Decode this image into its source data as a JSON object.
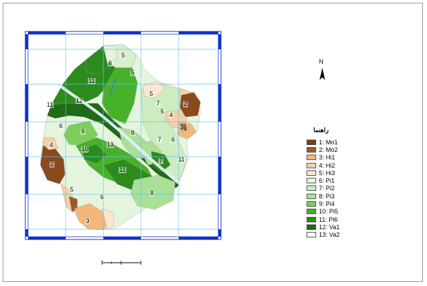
{
  "legend": {
    "title": "راهنما",
    "items": [
      {
        "label": "1: Mo1",
        "color": "#7a3d12"
      },
      {
        "label": "2: Mo2",
        "color": "#9c5a26"
      },
      {
        "label": "3: Hi1",
        "color": "#f2b77a"
      },
      {
        "label": "4: Hi2",
        "color": "#f6cfa6"
      },
      {
        "label": "5: Hi3",
        "color": "#fbe6d0"
      },
      {
        "label": "6: Pi1",
        "color": "#e5f5dd"
      },
      {
        "label": "7: Pi2",
        "color": "#cdedc1"
      },
      {
        "label": "8: Pi3",
        "color": "#a9df97"
      },
      {
        "label": "9: Pi4",
        "color": "#7ccf5c"
      },
      {
        "label": "10: Pi5",
        "color": "#48b12c"
      },
      {
        "label": "11: Pi6",
        "color": "#2b8c1c"
      },
      {
        "label": "12: Va1",
        "color": "#1f6b17"
      },
      {
        "label": "13: Va2",
        "color": "#ffffff"
      }
    ]
  },
  "north_arrow": {
    "letter": "N"
  },
  "map_labels": [
    "6",
    "5",
    "5",
    "11",
    "5",
    "7",
    "5",
    "2",
    "11",
    "12",
    "4",
    "3",
    "6",
    "9",
    "8",
    "7",
    "6",
    "4",
    "10",
    "13",
    "11",
    "7",
    "2",
    "11",
    "5",
    "6",
    "8",
    "3"
  ],
  "colors": {
    "grid": "#62c6ee",
    "neatline": "#1033c8",
    "river": "#7fb6e6"
  }
}
